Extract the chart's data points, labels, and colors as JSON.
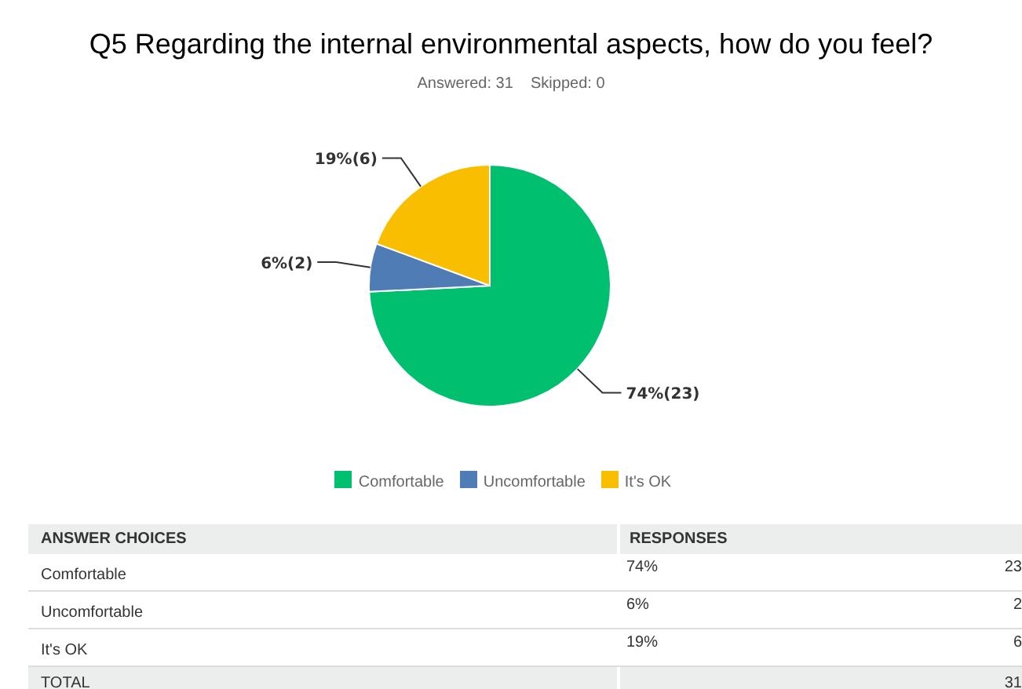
{
  "chart_data": {
    "type": "pie",
    "title": "Q5 Regarding the internal environmental aspects, how do you feel?",
    "subtitle": "Answered: 31    Skipped: 0",
    "categories": [
      "Comfortable",
      "Uncomfortable",
      "It's OK"
    ],
    "values": [
      23,
      2,
      6
    ],
    "colors": [
      "#00bf6f",
      "#507cb6",
      "#f9be00"
    ],
    "value_labels": [
      "74%(23)",
      "6%(2)",
      "19%(6)"
    ],
    "legend": "bottom",
    "annotations": [
      "ANSWER CHOICES",
      "RESPONSES",
      "74%",
      "6%",
      "19%",
      "TOTAL",
      "31",
      "23",
      "2",
      "6"
    ]
  }
}
